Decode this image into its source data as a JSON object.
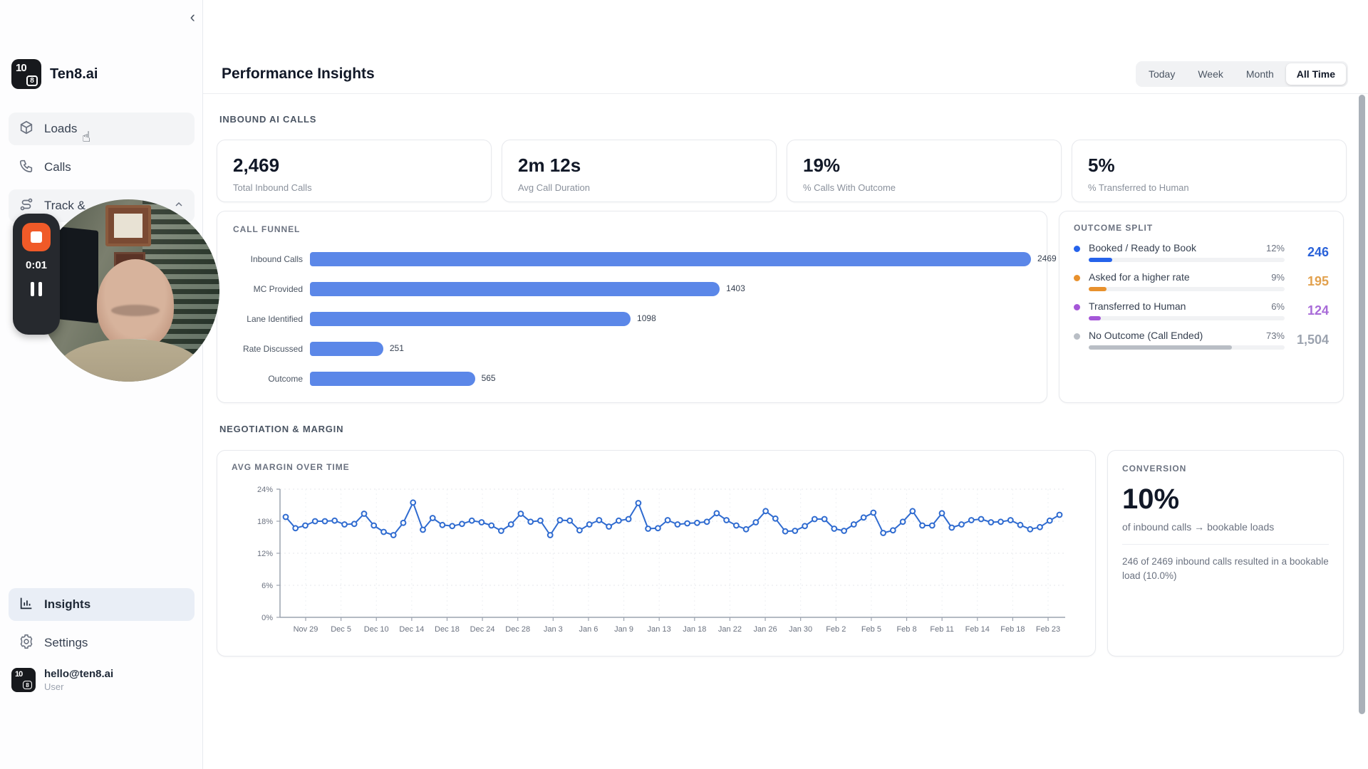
{
  "app": {
    "brand": "Ten8.ai"
  },
  "sidebar": {
    "collapse_icon": "chevron-left",
    "items": [
      {
        "label": "Loads",
        "icon": "cube-icon",
        "hovered": true
      },
      {
        "label": "Calls",
        "icon": "phone-icon",
        "hovered": false
      },
      {
        "label": "Track &",
        "icon": "route-icon",
        "hovered": true,
        "chevron": "up"
      }
    ],
    "bottom_items": [
      {
        "label": "Insights",
        "icon": "bar-chart-icon",
        "active": true
      },
      {
        "label": "Settings",
        "icon": "gear-icon",
        "active": false
      }
    ],
    "user": {
      "email": "hello@ten8.ai",
      "role": "User"
    }
  },
  "recorder": {
    "timer": "0:01",
    "stop_color": "#F05A28"
  },
  "header": {
    "title": "Performance Insights",
    "tabs": [
      "Today",
      "Week",
      "Month",
      "All Time"
    ],
    "active_tab": "All Time"
  },
  "sections": {
    "inbound": "INBOUND AI CALLS",
    "negotiation": "NEGOTIATION & MARGIN"
  },
  "kpis": [
    {
      "value": "2,469",
      "label": "Total Inbound Calls"
    },
    {
      "value": "2m 12s",
      "label": "Avg Call Duration"
    },
    {
      "value": "19%",
      "label": "% Calls With Outcome"
    },
    {
      "value": "5%",
      "label": "% Transferred to Human"
    }
  ],
  "conversion": {
    "title": "CONVERSION",
    "value": "10%",
    "subtitle": "of inbound calls → bookable loads",
    "detail": "246 of 2469 inbound calls resulted in a bookable load (10.0%)"
  },
  "chart_data": [
    {
      "type": "bar",
      "title": "CALL FUNNEL",
      "orientation": "horizontal",
      "categories": [
        "Inbound Calls",
        "MC Provided",
        "Lane Identified",
        "Rate Discussed",
        "Outcome"
      ],
      "values": [
        2469,
        1403,
        1098,
        251,
        565
      ],
      "value_labels": [
        "2469",
        "1403",
        "1098",
        "251",
        "565"
      ],
      "xlim": [
        0,
        2469
      ],
      "bar_color": "#5B87E8",
      "grid": false,
      "legend_position": "none"
    },
    {
      "type": "bar",
      "variant": "progress-list",
      "title": "OUTCOME SPLIT",
      "categories": [
        "Booked / Ready to Book",
        "Asked for a higher rate",
        "Transferred to Human",
        "No Outcome (Call Ended)"
      ],
      "percents": [
        "12%",
        "9%",
        "6%",
        "73%"
      ],
      "percent_values": [
        12,
        9,
        6,
        73
      ],
      "counts": [
        "246",
        "195",
        "124",
        "1,504"
      ],
      "colors": [
        "#2563EB",
        "#E8912D",
        "#A557D8",
        "#B9BEC5"
      ],
      "count_colors": [
        "#2A62D9",
        "#E2A14E",
        "#A86BD8",
        "#9CA3AF"
      ]
    },
    {
      "type": "line",
      "title": "AVG MARGIN OVER TIME",
      "ylabel": "",
      "xlabel": "",
      "ylim": [
        0,
        24
      ],
      "ytick_labels": [
        "0%",
        "6%",
        "12%",
        "18%",
        "24%"
      ],
      "ytick_values": [
        0,
        6,
        12,
        18,
        24
      ],
      "xtick_labels": [
        "Nov 29",
        "Dec 5",
        "Dec 10",
        "Dec 14",
        "Dec 18",
        "Dec 24",
        "Dec 28",
        "Jan 3",
        "Jan 6",
        "Jan 9",
        "Jan 13",
        "Jan 18",
        "Jan 22",
        "Jan 26",
        "Jan 30",
        "Feb 2",
        "Feb 5",
        "Feb 8",
        "Feb 11",
        "Feb 14",
        "Feb 18",
        "Feb 23"
      ],
      "grid": true,
      "legend_position": "none",
      "line_color": "#2F6BD0",
      "marker": "open-circle",
      "values": [
        18.8,
        16.7,
        17.2,
        18.0,
        18.0,
        18.1,
        17.4,
        17.5,
        19.4,
        17.2,
        16.0,
        15.4,
        17.7,
        21.5,
        16.4,
        18.6,
        17.3,
        17.1,
        17.5,
        18.1,
        17.8,
        17.2,
        16.2,
        17.4,
        19.4,
        17.9,
        18.1,
        15.4,
        18.2,
        18.1,
        16.3,
        17.4,
        18.2,
        17.0,
        18.1,
        18.4,
        21.4,
        16.6,
        16.7,
        18.2,
        17.4,
        17.6,
        17.7,
        17.9,
        19.5,
        18.2,
        17.2,
        16.5,
        17.8,
        19.9,
        18.5,
        16.1,
        16.2,
        17.1,
        18.4,
        18.4,
        16.6,
        16.2,
        17.4,
        18.7,
        19.6,
        15.8,
        16.3,
        17.9,
        19.9,
        17.2,
        17.2,
        19.5,
        16.8,
        17.4,
        18.2,
        18.4,
        17.8,
        17.9,
        18.2,
        17.3,
        16.5,
        16.9,
        18.1,
        19.2
      ]
    }
  ]
}
